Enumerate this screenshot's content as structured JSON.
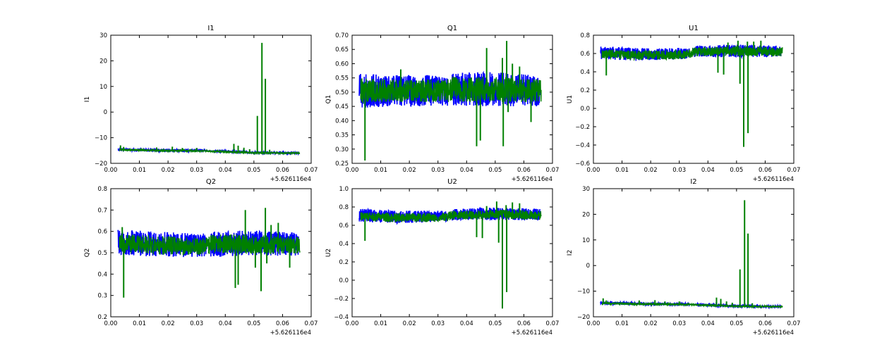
{
  "colors": {
    "series1": "#0000ff",
    "series2": "#008000",
    "axes": "#000000",
    "background": "#ffffff"
  },
  "chart_data": [
    {
      "type": "line",
      "title": "I1",
      "xlabel": "",
      "ylabel": "I1",
      "xlim": [
        0.0,
        0.07
      ],
      "ylim": [
        -20,
        30
      ],
      "xticks": [
        "0.00",
        "0.01",
        "0.02",
        "0.03",
        "0.04",
        "0.05",
        "0.06",
        "0.07"
      ],
      "yticks": [
        "−20",
        "−10",
        "0",
        "10",
        "20",
        "30"
      ],
      "offset_label": "+5.626116e4",
      "grid": false,
      "series": [
        {
          "color": "#0000ff",
          "x": [
            0.0025,
            0.0155,
            0.0335,
            0.036,
            0.05,
            0.0655
          ],
          "y": [
            -14.6,
            -14.9,
            -15.1,
            -15.2,
            -15.8,
            -16.0
          ],
          "band": [
            0.5,
            0.5,
            0.4,
            0.4,
            0.4,
            0.4
          ],
          "gaps": [
            [
              0.0335,
              0.036
            ]
          ]
        },
        {
          "color": "#008000",
          "x": [
            0.003,
            0.0155,
            0.033,
            0.035,
            0.05,
            0.066
          ],
          "y": [
            -14.7,
            -15.0,
            -15.2,
            -15.3,
            -15.9,
            -16.0
          ],
          "band": [
            0.4,
            0.4,
            0.3,
            0.3,
            0.3,
            0.3
          ],
          "spikes": [
            [
              0.0034,
              -13.0
            ],
            [
              0.0045,
              -13.6
            ],
            [
              0.016,
              -13.8
            ],
            [
              0.0215,
              -13.5
            ],
            [
              0.025,
              -14.0
            ],
            [
              0.03,
              -14.0
            ],
            [
              0.043,
              -12.4
            ],
            [
              0.0445,
              -13.1
            ],
            [
              0.0465,
              -13.9
            ],
            [
              0.0485,
              -14.5
            ],
            [
              0.0512,
              -1.5
            ],
            [
              0.0528,
              27.0
            ],
            [
              0.054,
              13.0
            ],
            [
              0.0555,
              -14.7
            ]
          ]
        }
      ]
    },
    {
      "type": "line",
      "title": "Q1",
      "xlabel": "",
      "ylabel": "Q1",
      "xlim": [
        0.0,
        0.07
      ],
      "ylim": [
        0.25,
        0.7
      ],
      "xticks": [
        "0.00",
        "0.01",
        "0.02",
        "0.03",
        "0.04",
        "0.05",
        "0.06",
        "0.07"
      ],
      "yticks": [
        "0.25",
        "0.30",
        "0.35",
        "0.40",
        "0.45",
        "0.50",
        "0.55",
        "0.60",
        "0.65",
        "0.70"
      ],
      "offset_label": "+5.626116e4",
      "grid": false,
      "series": [
        {
          "color": "#0000ff",
          "x": [
            0.0025,
            0.0155,
            0.0335,
            0.036,
            0.05,
            0.0655
          ],
          "y": [
            0.505,
            0.505,
            0.505,
            0.51,
            0.51,
            0.505
          ],
          "band": [
            0.06,
            0.055,
            0.055,
            0.06,
            0.06,
            0.055
          ],
          "gaps": [
            [
              0.0335,
              0.0348
            ]
          ]
        },
        {
          "color": "#008000",
          "x": [
            0.003,
            0.0155,
            0.033,
            0.035,
            0.05,
            0.066
          ],
          "y": [
            0.505,
            0.505,
            0.505,
            0.51,
            0.51,
            0.505
          ],
          "band": [
            0.045,
            0.04,
            0.04,
            0.045,
            0.045,
            0.04
          ],
          "spikes": [
            [
              0.0045,
              0.26
            ],
            [
              0.017,
              0.58
            ],
            [
              0.0365,
              0.55
            ],
            [
              0.0435,
              0.31
            ],
            [
              0.0448,
              0.33
            ],
            [
              0.047,
              0.655
            ],
            [
              0.0525,
              0.62
            ],
            [
              0.0528,
              0.31
            ],
            [
              0.054,
              0.68
            ],
            [
              0.0545,
              0.43
            ],
            [
              0.056,
              0.6
            ],
            [
              0.0585,
              0.59
            ],
            [
              0.0625,
              0.395
            ]
          ]
        }
      ]
    },
    {
      "type": "line",
      "title": "U1",
      "xlabel": "",
      "ylabel": "U1",
      "xlim": [
        0.0,
        0.07
      ],
      "ylim": [
        -0.6,
        0.8
      ],
      "xticks": [
        "0.00",
        "0.01",
        "0.02",
        "0.03",
        "0.04",
        "0.05",
        "0.06",
        "0.07"
      ],
      "yticks": [
        "−0.6",
        "−0.4",
        "−0.2",
        "0.0",
        "0.2",
        "0.4",
        "0.6",
        "0.8"
      ],
      "offset_label": "+5.626116e4",
      "grid": false,
      "series": [
        {
          "color": "#0000ff",
          "x": [
            0.0025,
            0.0155,
            0.0335,
            0.036,
            0.05,
            0.0655
          ],
          "y": [
            0.61,
            0.59,
            0.6,
            0.625,
            0.63,
            0.625
          ],
          "band": [
            0.07,
            0.07,
            0.06,
            0.06,
            0.07,
            0.06
          ],
          "gaps": [
            [
              0.0335,
              0.0348
            ]
          ]
        },
        {
          "color": "#008000",
          "x": [
            0.003,
            0.0155,
            0.033,
            0.035,
            0.05,
            0.066
          ],
          "y": [
            0.6,
            0.58,
            0.59,
            0.62,
            0.625,
            0.62
          ],
          "band": [
            0.05,
            0.05,
            0.05,
            0.05,
            0.05,
            0.05
          ],
          "spikes": [
            [
              0.0045,
              0.36
            ],
            [
              0.0435,
              0.39
            ],
            [
              0.0455,
              0.37
            ],
            [
              0.047,
              0.72
            ],
            [
              0.0505,
              0.74
            ],
            [
              0.0512,
              0.27
            ],
            [
              0.0525,
              -0.42
            ],
            [
              0.0538,
              0.73
            ],
            [
              0.054,
              -0.27
            ],
            [
              0.056,
              0.73
            ],
            [
              0.0585,
              0.74
            ]
          ]
        }
      ]
    },
    {
      "type": "line",
      "title": "Q2",
      "xlabel": "",
      "ylabel": "Q2",
      "xlim": [
        0.0,
        0.07
      ],
      "ylim": [
        0.2,
        0.8
      ],
      "xticks": [
        "0.00",
        "0.01",
        "0.02",
        "0.03",
        "0.04",
        "0.05",
        "0.06",
        "0.07"
      ],
      "yticks": [
        "0.2",
        "0.3",
        "0.4",
        "0.5",
        "0.6",
        "0.7",
        "0.8"
      ],
      "offset_label": "+5.626116e4",
      "grid": false,
      "series": [
        {
          "color": "#0000ff",
          "x": [
            0.0025,
            0.0155,
            0.0335,
            0.036,
            0.05,
            0.0655
          ],
          "y": [
            0.55,
            0.54,
            0.535,
            0.54,
            0.545,
            0.54
          ],
          "band": [
            0.06,
            0.06,
            0.055,
            0.06,
            0.06,
            0.055
          ],
          "gaps": [
            [
              0.0335,
              0.0348
            ]
          ]
        },
        {
          "color": "#008000",
          "x": [
            0.003,
            0.0155,
            0.033,
            0.035,
            0.05,
            0.066
          ],
          "y": [
            0.545,
            0.535,
            0.53,
            0.54,
            0.54,
            0.535
          ],
          "band": [
            0.045,
            0.045,
            0.04,
            0.045,
            0.045,
            0.04
          ],
          "spikes": [
            [
              0.0045,
              0.29
            ],
            [
              0.004,
              0.62
            ],
            [
              0.0435,
              0.335
            ],
            [
              0.0445,
              0.35
            ],
            [
              0.047,
              0.7
            ],
            [
              0.0505,
              0.43
            ],
            [
              0.0525,
              0.32
            ],
            [
              0.054,
              0.71
            ],
            [
              0.0545,
              0.45
            ],
            [
              0.056,
              0.63
            ],
            [
              0.0585,
              0.64
            ],
            [
              0.0625,
              0.43
            ]
          ]
        }
      ]
    },
    {
      "type": "line",
      "title": "U2",
      "xlabel": "",
      "ylabel": "U2",
      "xlim": [
        0.0,
        0.07
      ],
      "ylim": [
        -0.4,
        1.0
      ],
      "xticks": [
        "0.00",
        "0.01",
        "0.02",
        "0.03",
        "0.04",
        "0.05",
        "0.06",
        "0.07"
      ],
      "yticks": [
        "−0.4",
        "−0.2",
        "0.0",
        "0.2",
        "0.4",
        "0.6",
        "0.8",
        "1.0"
      ],
      "offset_label": "+5.626116e4",
      "grid": false,
      "series": [
        {
          "color": "#0000ff",
          "x": [
            0.0025,
            0.0155,
            0.0335,
            0.036,
            0.05,
            0.0655
          ],
          "y": [
            0.71,
            0.69,
            0.7,
            0.72,
            0.725,
            0.72
          ],
          "band": [
            0.07,
            0.07,
            0.06,
            0.06,
            0.07,
            0.06
          ],
          "gaps": [
            [
              0.0335,
              0.0348
            ]
          ]
        },
        {
          "color": "#008000",
          "x": [
            0.003,
            0.0155,
            0.033,
            0.035,
            0.05,
            0.066
          ],
          "y": [
            0.7,
            0.68,
            0.69,
            0.71,
            0.72,
            0.71
          ],
          "band": [
            0.05,
            0.05,
            0.05,
            0.05,
            0.05,
            0.05
          ],
          "spikes": [
            [
              0.0045,
              0.43
            ],
            [
              0.0435,
              0.47
            ],
            [
              0.0455,
              0.46
            ],
            [
              0.047,
              0.81
            ],
            [
              0.0505,
              0.86
            ],
            [
              0.0512,
              0.41
            ],
            [
              0.0525,
              -0.31
            ],
            [
              0.0538,
              0.82
            ],
            [
              0.054,
              -0.13
            ],
            [
              0.056,
              0.85
            ],
            [
              0.0585,
              0.84
            ]
          ]
        }
      ]
    },
    {
      "type": "line",
      "title": "I2",
      "xlabel": "",
      "ylabel": "I2",
      "xlim": [
        0.0,
        0.07
      ],
      "ylim": [
        -20,
        30
      ],
      "xticks": [
        "0.00",
        "0.01",
        "0.02",
        "0.03",
        "0.04",
        "0.05",
        "0.06",
        "0.07"
      ],
      "yticks": [
        "−20",
        "−10",
        "0",
        "10",
        "20",
        "30"
      ],
      "offset_label": "+5.626116e4",
      "grid": false,
      "series": [
        {
          "color": "#0000ff",
          "x": [
            0.0025,
            0.0155,
            0.0335,
            0.036,
            0.05,
            0.0655
          ],
          "y": [
            -14.6,
            -14.9,
            -15.1,
            -15.2,
            -15.8,
            -16.0
          ],
          "band": [
            0.5,
            0.5,
            0.4,
            0.4,
            0.4,
            0.4
          ],
          "gaps": [
            [
              0.0335,
              0.036
            ]
          ]
        },
        {
          "color": "#008000",
          "x": [
            0.003,
            0.0155,
            0.033,
            0.035,
            0.05,
            0.066
          ],
          "y": [
            -14.7,
            -15.0,
            -15.2,
            -15.3,
            -15.9,
            -16.0
          ],
          "band": [
            0.4,
            0.4,
            0.3,
            0.3,
            0.3,
            0.3
          ],
          "spikes": [
            [
              0.0034,
              -12.8
            ],
            [
              0.0045,
              -13.6
            ],
            [
              0.016,
              -13.6
            ],
            [
              0.0215,
              -13.5
            ],
            [
              0.025,
              -14.0
            ],
            [
              0.03,
              -14.0
            ],
            [
              0.043,
              -12.5
            ],
            [
              0.0445,
              -13.0
            ],
            [
              0.0465,
              -14.0
            ],
            [
              0.0485,
              -14.5
            ],
            [
              0.0512,
              -1.5
            ],
            [
              0.0528,
              25.5
            ],
            [
              0.054,
              12.5
            ],
            [
              0.0555,
              -14.7
            ]
          ]
        }
      ]
    }
  ]
}
